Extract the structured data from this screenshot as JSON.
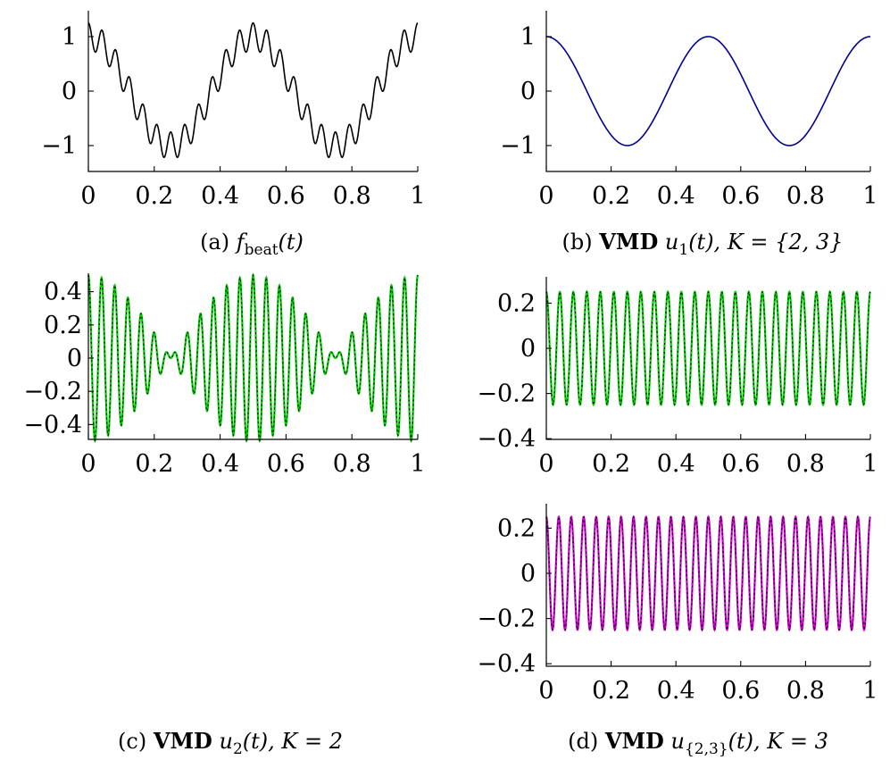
{
  "chart_data": [
    {
      "id": "a",
      "type": "line",
      "caption": {
        "prefix": "(a) ",
        "math_main": "f",
        "math_sub": "beat",
        "math_rest": "(t)"
      },
      "x_ticks": [
        "0",
        "0.2",
        "0.4",
        "0.6",
        "0.8",
        "1"
      ],
      "y_ticks": [
        "1",
        "0",
        "−1"
      ],
      "xlim": [
        0,
        1
      ],
      "ylim": [
        -1.5,
        1.5
      ],
      "series": [
        {
          "formula": "cos(4πt) + 0.25·cos(48πt)",
          "color": "#000000"
        }
      ]
    },
    {
      "id": "b",
      "type": "line",
      "caption": {
        "prefix": "(b) ",
        "bold": "VMD",
        "math_main": "u",
        "math_sub": "1",
        "math_rest": "(t), K = {2, 3}"
      },
      "x_ticks": [
        "0",
        "0.2",
        "0.4",
        "0.6",
        "0.8",
        "1"
      ],
      "y_ticks": [
        "1",
        "0",
        "−1"
      ],
      "xlim": [
        0,
        1
      ],
      "ylim": [
        -1.5,
        1.5
      ],
      "series": [
        {
          "formula": "cos(4πt)",
          "color": "#00008b"
        }
      ]
    },
    {
      "id": "c",
      "type": "line",
      "caption": {
        "prefix": "(c) ",
        "bold": "VMD",
        "math_main": "u",
        "math_sub": "2",
        "math_rest": "(t), K = 2"
      },
      "x_ticks": [
        "0",
        "0.2",
        "0.4",
        "0.6",
        "0.8",
        "1"
      ],
      "y_ticks": [
        "0.4",
        "0.2",
        "0",
        "−0.2",
        "−0.4"
      ],
      "xlim": [
        0,
        1
      ],
      "ylim": [
        -0.5,
        0.5
      ],
      "series": [
        {
          "formula": "0.25·cos(48πt) + 0.25·cos(52πt)",
          "color": "#00cc00",
          "overlay": "dashed-black"
        }
      ]
    },
    {
      "id": "d1",
      "type": "line",
      "x_ticks": [
        "0",
        "0.2",
        "0.4",
        "0.6",
        "0.8",
        "1"
      ],
      "y_ticks": [
        "0.2",
        "0",
        "−0.2",
        "−0.4"
      ],
      "xlim": [
        0,
        1
      ],
      "ylim": [
        -0.4,
        0.3
      ],
      "series": [
        {
          "formula": "0.25·cos(48πt)",
          "color": "#00cc00",
          "overlay": "dashed-black"
        }
      ]
    },
    {
      "id": "d2",
      "type": "line",
      "caption": {
        "prefix": "(d) ",
        "bold": "VMD",
        "math_main": "u",
        "math_sub": "{2,3}",
        "math_rest": "(t), K = 3"
      },
      "x_ticks": [
        "0",
        "0.2",
        "0.4",
        "0.6",
        "0.8",
        "1"
      ],
      "y_ticks": [
        "0.2",
        "0",
        "−0.2",
        "−0.4"
      ],
      "xlim": [
        0,
        1
      ],
      "ylim": [
        -0.4,
        0.3
      ],
      "series": [
        {
          "formula": "0.25·cos(52πt)",
          "color": "#cc00cc",
          "overlay": "dashed-black"
        }
      ]
    }
  ]
}
